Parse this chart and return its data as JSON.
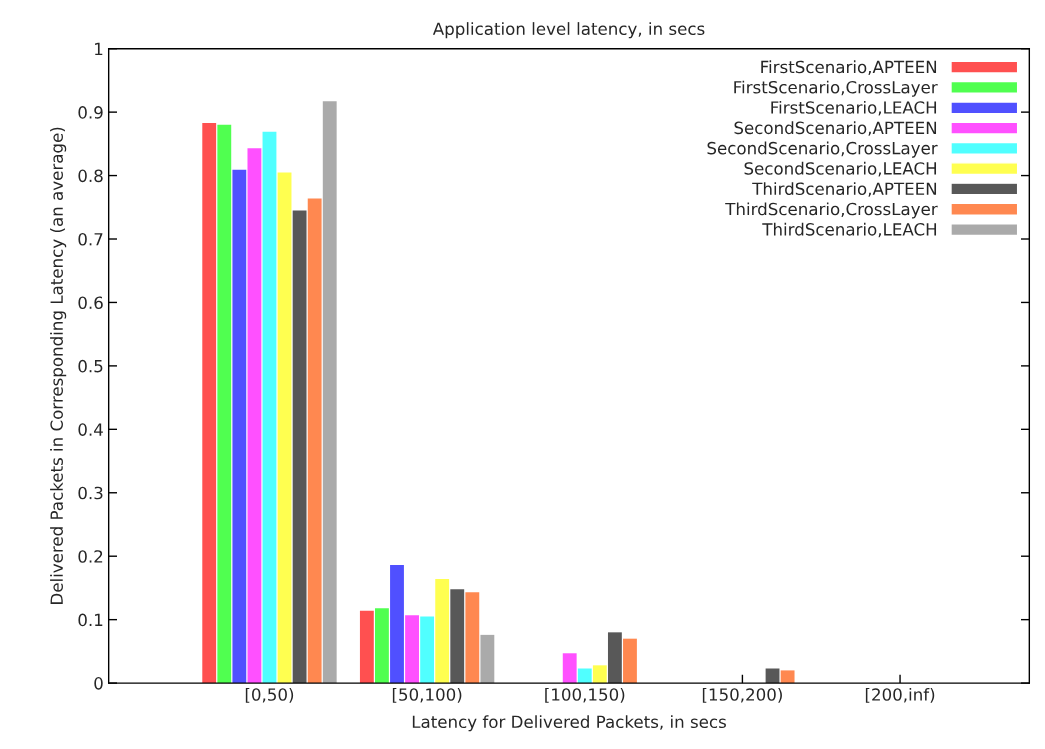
{
  "chart_data": {
    "type": "bar",
    "title": "Application level latency, in secs",
    "xlabel": "Latency for Delivered Packets, in secs",
    "ylabel": "Delivered Packets in Corresponding Latency (an average)",
    "categories": [
      "[0,50)",
      "[50,100)",
      "[100,150)",
      "[150,200)",
      "[200,inf)"
    ],
    "series": [
      {
        "name": "FirstScenario,APTEEN",
        "color": "#ff5050",
        "values": [
          0.883,
          0.114,
          null,
          null,
          null
        ]
      },
      {
        "name": "FirstScenario,CrossLayer",
        "color": "#50ff50",
        "values": [
          0.88,
          0.118,
          null,
          null,
          null
        ]
      },
      {
        "name": "FirstScenario,LEACH",
        "color": "#5050ff",
        "values": [
          0.809,
          0.186,
          null,
          null,
          null
        ]
      },
      {
        "name": "SecondScenario,APTEEN",
        "color": "#ff50ff",
        "values": [
          0.843,
          0.107,
          0.047,
          null,
          null
        ]
      },
      {
        "name": "SecondScenario,CrossLayer",
        "color": "#50ffff",
        "values": [
          0.869,
          0.105,
          0.023,
          null,
          null
        ]
      },
      {
        "name": "SecondScenario,LEACH",
        "color": "#ffff50",
        "values": [
          0.805,
          0.164,
          0.028,
          null,
          null
        ]
      },
      {
        "name": "ThirdScenario,APTEEN",
        "color": "#585858",
        "values": [
          0.745,
          0.148,
          0.08,
          0.023,
          null
        ]
      },
      {
        "name": "ThirdScenario,CrossLayer",
        "color": "#ff8850",
        "values": [
          0.764,
          0.143,
          0.07,
          0.02,
          null
        ]
      },
      {
        "name": "ThirdScenario,LEACH",
        "color": "#aaaaaa",
        "values": [
          0.917,
          0.076,
          null,
          null,
          null
        ]
      }
    ],
    "ylim": [
      0,
      1
    ],
    "yticks": [
      0,
      0.1,
      0.2,
      0.3,
      0.4,
      0.5,
      0.6,
      0.7,
      0.8,
      0.9,
      1
    ],
    "legend": "top right",
    "grid": false
  }
}
